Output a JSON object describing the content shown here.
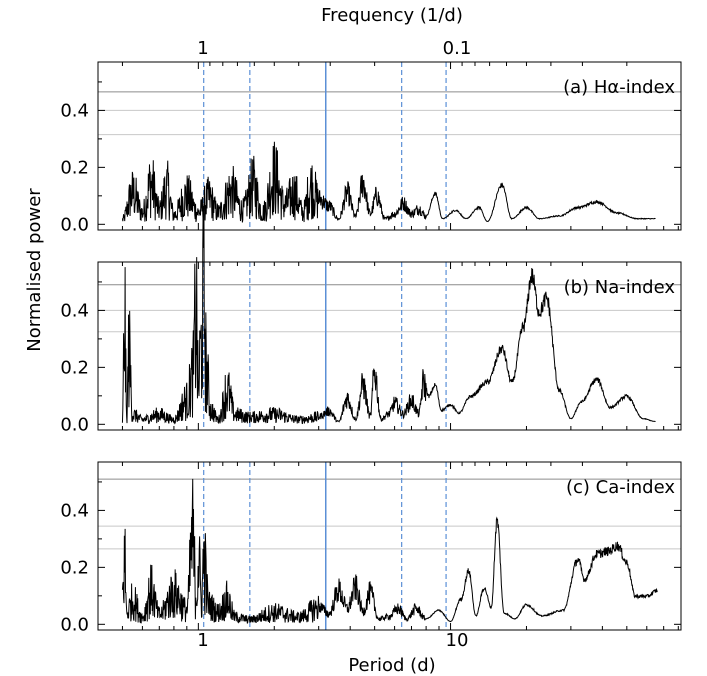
{
  "figure": {
    "ylabel": "Normalised power",
    "xlabel": "Period (d)",
    "top_axis_label": "Frequency (1/d)"
  },
  "chart_data": {
    "type": "line",
    "x_scale": "log",
    "x_range": [
      0.4,
      82
    ],
    "bottom_ticks": [
      {
        "value": 1,
        "label": "1"
      },
      {
        "value": 10,
        "label": "10"
      }
    ],
    "top_ticks": [
      {
        "frequency": 1,
        "label": "1"
      },
      {
        "frequency": 0.1,
        "label": "0.1"
      }
    ],
    "ylim": [
      -0.02,
      0.57
    ],
    "y_ticks": [
      0.0,
      0.2,
      0.4
    ],
    "grid": false,
    "colors": {
      "line": "#000000",
      "solid_marker": "#5b8fd6",
      "dashed_marker": "#5b8fd6",
      "threshold": "#8c8c8c"
    },
    "vertical_lines": [
      {
        "period": 1.05,
        "style": "dashed"
      },
      {
        "period": 1.6,
        "style": "dashed"
      },
      {
        "period": 3.2,
        "style": "solid"
      },
      {
        "period": 6.4,
        "style": "dashed"
      },
      {
        "period": 9.6,
        "style": "dashed"
      }
    ],
    "panels": [
      {
        "label": "(a) Hα-index",
        "thresholds": [
          0.465,
          0.4,
          0.315
        ],
        "keypoints": [
          [
            0.5,
            0.02
          ],
          [
            0.55,
            0.13
          ],
          [
            0.6,
            0.05
          ],
          [
            0.65,
            0.17
          ],
          [
            0.7,
            0.06
          ],
          [
            0.75,
            0.15
          ],
          [
            0.8,
            0.04
          ],
          [
            0.9,
            0.12
          ],
          [
            1.0,
            0.05
          ],
          [
            1.1,
            0.11
          ],
          [
            1.2,
            0.05
          ],
          [
            1.35,
            0.14
          ],
          [
            1.5,
            0.06
          ],
          [
            1.65,
            0.16
          ],
          [
            1.8,
            0.05
          ],
          [
            2.0,
            0.2
          ],
          [
            2.2,
            0.08
          ],
          [
            2.4,
            0.13
          ],
          [
            2.6,
            0.05
          ],
          [
            2.8,
            0.16
          ],
          [
            3.0,
            0.1
          ],
          [
            3.3,
            0.07
          ],
          [
            3.6,
            0.02
          ],
          [
            3.9,
            0.12
          ],
          [
            4.2,
            0.03
          ],
          [
            4.5,
            0.16
          ],
          [
            4.8,
            0.04
          ],
          [
            5.1,
            0.11
          ],
          [
            5.5,
            0.02
          ],
          [
            6.0,
            0.04
          ],
          [
            6.5,
            0.08
          ],
          [
            7.0,
            0.04
          ],
          [
            7.5,
            0.06
          ],
          [
            8.0,
            0.03
          ],
          [
            8.7,
            0.11
          ],
          [
            9.3,
            0.02
          ],
          [
            10.5,
            0.05
          ],
          [
            11.5,
            0.02
          ],
          [
            13.0,
            0.06
          ],
          [
            14.0,
            0.01
          ],
          [
            16.0,
            0.14
          ],
          [
            17.5,
            0.02
          ],
          [
            20.0,
            0.06
          ],
          [
            22.5,
            0.02
          ],
          [
            27.0,
            0.03
          ],
          [
            32.0,
            0.06
          ],
          [
            38.0,
            0.08
          ],
          [
            46.0,
            0.04
          ],
          [
            55.0,
            0.02
          ],
          [
            65.0,
            0.02
          ]
        ]
      },
      {
        "label": "(b) Na-index",
        "thresholds": [
          0.49,
          0.4,
          0.325
        ],
        "keypoints": [
          [
            0.5,
            0.01
          ],
          [
            0.51,
            0.45
          ],
          [
            0.52,
            0.02
          ],
          [
            0.53,
            0.3
          ],
          [
            0.55,
            0.04
          ],
          [
            0.6,
            0.02
          ],
          [
            0.7,
            0.04
          ],
          [
            0.8,
            0.02
          ],
          [
            0.9,
            0.1
          ],
          [
            0.95,
            0.2
          ],
          [
            0.98,
            0.48
          ],
          [
            1.0,
            0.15
          ],
          [
            1.02,
            0.3
          ],
          [
            1.05,
            0.53
          ],
          [
            1.08,
            0.2
          ],
          [
            1.12,
            0.06
          ],
          [
            1.2,
            0.02
          ],
          [
            1.3,
            0.14
          ],
          [
            1.4,
            0.04
          ],
          [
            1.6,
            0.03
          ],
          [
            2.0,
            0.04
          ],
          [
            2.5,
            0.02
          ],
          [
            3.0,
            0.03
          ],
          [
            3.3,
            0.05
          ],
          [
            3.6,
            0.01
          ],
          [
            3.9,
            0.1
          ],
          [
            4.2,
            0.02
          ],
          [
            4.5,
            0.15
          ],
          [
            4.8,
            0.03
          ],
          [
            5.0,
            0.2
          ],
          [
            5.3,
            0.02
          ],
          [
            5.7,
            0.04
          ],
          [
            6.0,
            0.08
          ],
          [
            6.5,
            0.04
          ],
          [
            7.0,
            0.09
          ],
          [
            7.5,
            0.04
          ],
          [
            7.8,
            0.16
          ],
          [
            8.2,
            0.1
          ],
          [
            8.7,
            0.14
          ],
          [
            9.2,
            0.05
          ],
          [
            10.0,
            0.07
          ],
          [
            10.8,
            0.04
          ],
          [
            12.0,
            0.1
          ],
          [
            14.0,
            0.15
          ],
          [
            16.0,
            0.27
          ],
          [
            17.5,
            0.15
          ],
          [
            19.5,
            0.35
          ],
          [
            21.0,
            0.53
          ],
          [
            22.5,
            0.4
          ],
          [
            24.0,
            0.45
          ],
          [
            27.0,
            0.12
          ],
          [
            30.0,
            0.02
          ],
          [
            33.0,
            0.08
          ],
          [
            38.0,
            0.16
          ],
          [
            43.0,
            0.06
          ],
          [
            50.0,
            0.1
          ],
          [
            58.0,
            0.02
          ],
          [
            65.0,
            0.01
          ]
        ]
      },
      {
        "label": "(c) Ca-index",
        "thresholds": [
          0.51,
          0.345,
          0.265
        ],
        "keypoints": [
          [
            0.5,
            0.12
          ],
          [
            0.51,
            0.27
          ],
          [
            0.52,
            0.05
          ],
          [
            0.55,
            0.1
          ],
          [
            0.6,
            0.03
          ],
          [
            0.65,
            0.14
          ],
          [
            0.7,
            0.04
          ],
          [
            0.8,
            0.13
          ],
          [
            0.9,
            0.06
          ],
          [
            0.95,
            0.35
          ],
          [
            0.98,
            0.12
          ],
          [
            1.0,
            0.27
          ],
          [
            1.03,
            0.1
          ],
          [
            1.05,
            0.27
          ],
          [
            1.1,
            0.08
          ],
          [
            1.2,
            0.05
          ],
          [
            1.3,
            0.1
          ],
          [
            1.4,
            0.03
          ],
          [
            1.6,
            0.02
          ],
          [
            2.0,
            0.05
          ],
          [
            2.5,
            0.03
          ],
          [
            3.0,
            0.07
          ],
          [
            3.3,
            0.04
          ],
          [
            3.6,
            0.13
          ],
          [
            3.9,
            0.06
          ],
          [
            4.2,
            0.14
          ],
          [
            4.5,
            0.05
          ],
          [
            4.8,
            0.12
          ],
          [
            5.2,
            0.02
          ],
          [
            5.7,
            0.03
          ],
          [
            6.2,
            0.06
          ],
          [
            6.7,
            0.02
          ],
          [
            7.3,
            0.06
          ],
          [
            8.0,
            0.02
          ],
          [
            9.0,
            0.05
          ],
          [
            10.0,
            0.01
          ],
          [
            11.0,
            0.09
          ],
          [
            11.8,
            0.19
          ],
          [
            12.6,
            0.03
          ],
          [
            13.6,
            0.13
          ],
          [
            14.5,
            0.06
          ],
          [
            15.3,
            0.37
          ],
          [
            16.3,
            0.04
          ],
          [
            18.0,
            0.02
          ],
          [
            20.0,
            0.07
          ],
          [
            23.0,
            0.03
          ],
          [
            28.0,
            0.05
          ],
          [
            32.0,
            0.23
          ],
          [
            34.0,
            0.16
          ],
          [
            38.0,
            0.25
          ],
          [
            42.0,
            0.26
          ],
          [
            46.0,
            0.28
          ],
          [
            50.0,
            0.22
          ],
          [
            54.0,
            0.1
          ],
          [
            60.0,
            0.1
          ],
          [
            66.0,
            0.12
          ]
        ]
      }
    ]
  }
}
